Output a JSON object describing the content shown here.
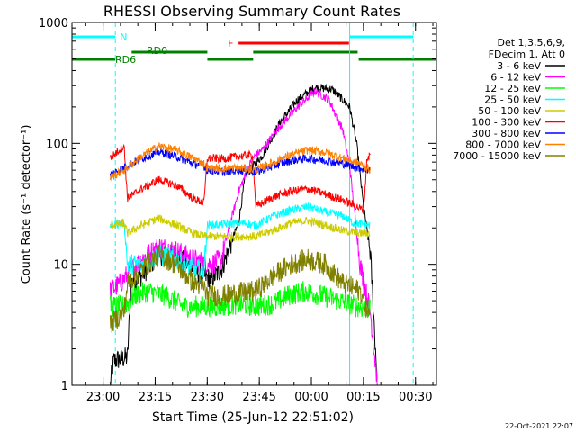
{
  "chart_data": {
    "type": "line",
    "title": "RHESSI Observing Summary Count Rates",
    "xlabel": "Start Time (25-Jun-12 22:51:02)",
    "ylabel": "Count Rate (s⁻¹ detector⁻¹)",
    "yscale": "log",
    "ylim": [
      1,
      1000
    ],
    "xlim_minutes_from_start": [
      0,
      105
    ],
    "x_tick_labels": [
      "23:00",
      "23:15",
      "23:30",
      "23:45",
      "00:00",
      "00:15",
      "00:30"
    ],
    "x_tick_minutes": [
      8.97,
      23.97,
      38.97,
      53.97,
      68.97,
      83.97,
      98.97
    ],
    "y_tick_labels": [
      "1",
      "10",
      "100",
      "1000"
    ],
    "y_tick_values": [
      1,
      10,
      100,
      1000
    ],
    "legend_title": [
      "Det 1,3,5,6,9,",
      "FDecim 1, Att 0"
    ],
    "legend_position": "right",
    "series": [
      {
        "name": "3 - 6 keV",
        "color": "#000000",
        "points": [
          [
            11,
            1
          ],
          [
            12,
            1.6
          ],
          [
            16,
            1.7
          ],
          [
            17,
            7
          ],
          [
            20,
            8
          ],
          [
            25,
            12
          ],
          [
            30,
            12
          ],
          [
            35,
            9
          ],
          [
            40,
            7.5
          ],
          [
            43,
            9
          ],
          [
            48,
            22
          ],
          [
            50,
            55
          ],
          [
            55,
            80
          ],
          [
            60,
            150
          ],
          [
            65,
            230
          ],
          [
            70,
            290
          ],
          [
            75,
            280
          ],
          [
            80,
            200
          ],
          [
            82,
            100
          ],
          [
            84,
            30
          ],
          [
            86,
            12
          ],
          [
            88,
            1
          ]
        ]
      },
      {
        "name": "6 - 12 keV",
        "color": "#ff00ff",
        "points": [
          [
            11,
            6
          ],
          [
            14,
            7
          ],
          [
            17,
            9
          ],
          [
            20,
            11
          ],
          [
            25,
            14
          ],
          [
            30,
            13
          ],
          [
            35,
            11
          ],
          [
            40,
            10
          ],
          [
            43,
            11
          ],
          [
            48,
            40
          ],
          [
            52,
            75
          ],
          [
            55,
            90
          ],
          [
            60,
            140
          ],
          [
            65,
            200
          ],
          [
            70,
            270
          ],
          [
            74,
            230
          ],
          [
            78,
            130
          ],
          [
            80,
            65
          ],
          [
            83,
            10
          ],
          [
            86,
            4
          ],
          [
            88,
            1
          ]
        ]
      },
      {
        "name": "12 - 25 keV",
        "color": "#00ff00",
        "points": [
          [
            11,
            4.5
          ],
          [
            15,
            4.5
          ],
          [
            18,
            5.5
          ],
          [
            22,
            6
          ],
          [
            27,
            5.5
          ],
          [
            32,
            4.5
          ],
          [
            37,
            4.5
          ],
          [
            42,
            4.5
          ],
          [
            48,
            4.7
          ],
          [
            53,
            4.5
          ],
          [
            58,
            4.7
          ],
          [
            62,
            5.5
          ],
          [
            67,
            6
          ],
          [
            72,
            5.5
          ],
          [
            77,
            5
          ],
          [
            82,
            4.5
          ],
          [
            86,
            4.2
          ]
        ]
      },
      {
        "name": "25 - 50 keV",
        "color": "#00ffff",
        "points": [
          [
            11,
            21
          ],
          [
            15,
            22
          ],
          [
            16,
            10
          ],
          [
            20,
            10
          ],
          [
            25,
            12
          ],
          [
            30,
            11
          ],
          [
            35,
            9
          ],
          [
            38,
            9
          ],
          [
            39,
            21
          ],
          [
            50,
            22
          ],
          [
            52,
            21
          ],
          [
            53,
            21
          ],
          [
            58,
            25
          ],
          [
            63,
            28
          ],
          [
            68,
            30
          ],
          [
            73,
            27
          ],
          [
            78,
            25
          ],
          [
            81,
            22
          ],
          [
            86,
            21
          ]
        ]
      },
      {
        "name": "50 - 100 keV",
        "color": "#cccc00",
        "points": [
          [
            11,
            21
          ],
          [
            15,
            22
          ],
          [
            16,
            18
          ],
          [
            20,
            21
          ],
          [
            25,
            24
          ],
          [
            30,
            21
          ],
          [
            35,
            18
          ],
          [
            38,
            17
          ],
          [
            39,
            17
          ],
          [
            53,
            17
          ],
          [
            58,
            19
          ],
          [
            63,
            22
          ],
          [
            68,
            23
          ],
          [
            73,
            21
          ],
          [
            78,
            19
          ],
          [
            83,
            18
          ],
          [
            86,
            18
          ]
        ]
      },
      {
        "name": "100 - 300 keV",
        "color": "#ff0000",
        "points": [
          [
            11,
            75
          ],
          [
            13,
            85
          ],
          [
            15,
            95
          ],
          [
            16,
            35
          ],
          [
            20,
            42
          ],
          [
            25,
            50
          ],
          [
            30,
            45
          ],
          [
            35,
            35
          ],
          [
            38,
            32
          ],
          [
            39,
            75
          ],
          [
            44,
            75
          ],
          [
            48,
            78
          ],
          [
            52,
            80
          ],
          [
            53,
            30
          ],
          [
            58,
            36
          ],
          [
            63,
            40
          ],
          [
            68,
            42
          ],
          [
            73,
            38
          ],
          [
            78,
            34
          ],
          [
            82,
            30
          ],
          [
            84,
            28
          ],
          [
            85,
            75
          ],
          [
            86,
            80
          ]
        ]
      },
      {
        "name": "300 - 800 keV",
        "color": "#0000ff",
        "points": [
          [
            11,
            55
          ],
          [
            15,
            63
          ],
          [
            20,
            75
          ],
          [
            25,
            85
          ],
          [
            30,
            78
          ],
          [
            35,
            68
          ],
          [
            38,
            65
          ],
          [
            39,
            60
          ],
          [
            44,
            58
          ],
          [
            48,
            60
          ],
          [
            53,
            58
          ],
          [
            58,
            65
          ],
          [
            63,
            72
          ],
          [
            68,
            75
          ],
          [
            73,
            72
          ],
          [
            78,
            68
          ],
          [
            83,
            62
          ],
          [
            86,
            60
          ]
        ]
      },
      {
        "name": "800 - 7000 keV",
        "color": "#ff8000",
        "points": [
          [
            11,
            52
          ],
          [
            15,
            60
          ],
          [
            20,
            78
          ],
          [
            25,
            95
          ],
          [
            30,
            88
          ],
          [
            35,
            75
          ],
          [
            38,
            68
          ],
          [
            39,
            62
          ],
          [
            44,
            62
          ],
          [
            48,
            63
          ],
          [
            53,
            60
          ],
          [
            58,
            70
          ],
          [
            63,
            80
          ],
          [
            68,
            88
          ],
          [
            73,
            84
          ],
          [
            78,
            75
          ],
          [
            83,
            68
          ],
          [
            86,
            60
          ]
        ]
      },
      {
        "name": "7000 - 15000 keV",
        "color": "#808000",
        "points": [
          [
            11,
            3.2
          ],
          [
            14,
            3.8
          ],
          [
            15,
            4
          ],
          [
            16,
            7
          ],
          [
            20,
            9
          ],
          [
            25,
            12
          ],
          [
            30,
            10
          ],
          [
            35,
            7
          ],
          [
            38,
            6.5
          ],
          [
            39,
            5.5
          ],
          [
            44,
            5.5
          ],
          [
            48,
            5.8
          ],
          [
            53,
            6
          ],
          [
            58,
            8
          ],
          [
            63,
            10
          ],
          [
            68,
            11
          ],
          [
            73,
            10
          ],
          [
            78,
            7
          ],
          [
            83,
            6
          ],
          [
            86,
            3.5
          ]
        ]
      }
    ],
    "annotations": {
      "N": {
        "label": "N",
        "color": "#00ffff",
        "spans_minutes": [
          [
            0,
            12.5
          ],
          [
            80,
            98.3
          ]
        ]
      },
      "F": {
        "label": "F",
        "color": "#ff0000",
        "span_minutes": [
          48,
          79.8
        ]
      },
      "RD0": {
        "label": "RD0",
        "color": "#008000",
        "spans_minutes": [
          [
            17.2,
            39
          ],
          [
            52.2,
            82.3
          ]
        ]
      },
      "RD6": {
        "label": "RD6",
        "color": "#008000",
        "spans_minutes": [
          [
            0,
            12.5
          ],
          [
            39,
            52.2
          ],
          [
            82.6,
            105
          ]
        ]
      },
      "vertical_markers_minutes": [
        {
          "x": 12.5,
          "style": "dashed"
        },
        {
          "x": 80,
          "style": "solid"
        },
        {
          "x": 98.3,
          "style": "dashed"
        }
      ]
    }
  },
  "footer": {
    "timestamp": "22-Oct-2021 22:07"
  }
}
